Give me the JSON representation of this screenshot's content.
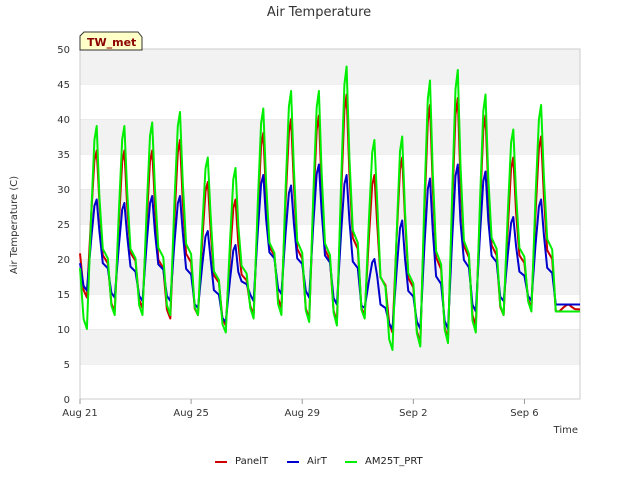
{
  "chart_data": {
    "type": "line",
    "title": "Air Temperature",
    "xlabel": "Time",
    "ylabel": "Air Temperature (C)",
    "site_tag": "TW_met",
    "ylim": [
      0,
      50
    ],
    "yticks": [
      0,
      5,
      10,
      15,
      20,
      25,
      30,
      35,
      40,
      45,
      50
    ],
    "xlim": [
      "2023-08-21",
      "2023-09-08"
    ],
    "xticks": [
      {
        "date": "2023-08-21",
        "label": "Aug 21"
      },
      {
        "date": "2023-08-25",
        "label": "Aug 25"
      },
      {
        "date": "2023-08-29",
        "label": "Aug 29"
      },
      {
        "date": "2023-09-02",
        "label": "Sep 2"
      },
      {
        "date": "2023-09-06",
        "label": "Sep 6"
      }
    ],
    "grid": "horizontal bands",
    "legend_position": "bottom",
    "daily_dates": [
      "2023-08-21",
      "2023-08-22",
      "2023-08-23",
      "2023-08-24",
      "2023-08-25",
      "2023-08-26",
      "2023-08-27",
      "2023-08-28",
      "2023-08-29",
      "2023-08-30",
      "2023-08-31",
      "2023-09-01",
      "2023-09-02",
      "2023-09-03",
      "2023-09-04",
      "2023-09-05",
      "2023-09-06",
      "2023-09-07"
    ],
    "series": [
      {
        "name": "PanelT",
        "color": "#cc0000",
        "daily_min": [
          14.5,
          12.5,
          13.0,
          11.5,
          12.0,
          10.5,
          12.0,
          13.0,
          11.5,
          11.0,
          12.0,
          9.5,
          8.0,
          8.5,
          10.5,
          12.0,
          13.0,
          12.5
        ],
        "daily_max": [
          35.5,
          35.5,
          35.5,
          37.0,
          31.0,
          28.5,
          38.0,
          40.0,
          40.5,
          43.5,
          32.0,
          34.5,
          42.0,
          43.0,
          40.5,
          34.5,
          37.5,
          13.5
        ]
      },
      {
        "name": "AirT",
        "color": "#0000cc",
        "daily_min": [
          15.5,
          14.5,
          14.0,
          14.0,
          13.0,
          11.0,
          14.0,
          15.0,
          14.5,
          13.5,
          13.0,
          10.0,
          10.0,
          10.0,
          12.5,
          14.0,
          14.0,
          13.5
        ],
        "daily_max": [
          28.5,
          28.0,
          29.0,
          29.0,
          24.0,
          22.0,
          32.0,
          30.5,
          33.5,
          32.0,
          20.0,
          25.5,
          31.5,
          33.5,
          32.5,
          26.0,
          28.5,
          13.5
        ]
      },
      {
        "name": "AM25T_PRT",
        "color": "#00ee00",
        "daily_min": [
          10.0,
          12.0,
          12.0,
          12.0,
          12.0,
          9.5,
          11.5,
          12.0,
          11.0,
          10.5,
          11.5,
          7.0,
          7.5,
          8.0,
          9.5,
          12.0,
          12.5,
          12.5
        ],
        "daily_max": [
          39.0,
          39.0,
          39.5,
          41.0,
          34.5,
          33.0,
          41.5,
          44.0,
          44.0,
          47.5,
          37.0,
          37.5,
          45.5,
          47.0,
          43.5,
          38.5,
          42.0,
          12.5
        ]
      }
    ]
  }
}
